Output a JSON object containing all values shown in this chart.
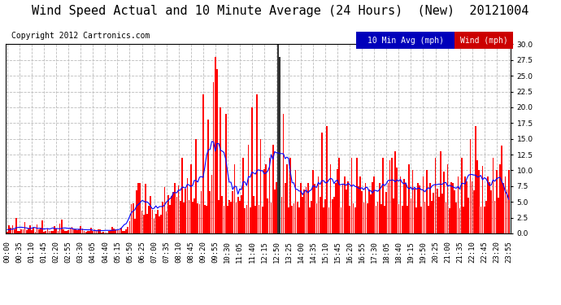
{
  "title": "Wind Speed Actual and 10 Minute Average (24 Hours)  (New)  20121004",
  "copyright": "Copyright 2012 Cartronics.com",
  "legend_labels": [
    "10 Min Avg (mph)",
    "Wind (mph)"
  ],
  "ylim": [
    0,
    30
  ],
  "yticks": [
    0.0,
    2.5,
    5.0,
    7.5,
    10.0,
    12.5,
    15.0,
    17.5,
    20.0,
    22.5,
    25.0,
    27.5,
    30.0
  ],
  "bg_color": "#ffffff",
  "plot_bg_color": "#ffffff",
  "grid_color": "#bbbbbb",
  "bar_color": "#ff0000",
  "line_color": "#0000ff",
  "dark_bar_color": "#333333",
  "n_points": 288,
  "time_labels": [
    "00:00",
    "00:35",
    "01:10",
    "01:45",
    "02:20",
    "02:55",
    "03:30",
    "04:05",
    "04:40",
    "05:15",
    "05:50",
    "06:25",
    "07:00",
    "07:35",
    "08:10",
    "08:45",
    "09:20",
    "09:55",
    "10:30",
    "11:05",
    "11:40",
    "12:15",
    "12:50",
    "13:25",
    "14:00",
    "14:35",
    "15:10",
    "15:45",
    "16:20",
    "16:55",
    "17:30",
    "18:05",
    "18:40",
    "19:15",
    "19:50",
    "20:25",
    "21:00",
    "21:35",
    "22:10",
    "22:45",
    "23:20",
    "23:55"
  ],
  "title_fontsize": 11,
  "copyright_fontsize": 7,
  "tick_fontsize": 6.5,
  "legend_fontsize": 7
}
